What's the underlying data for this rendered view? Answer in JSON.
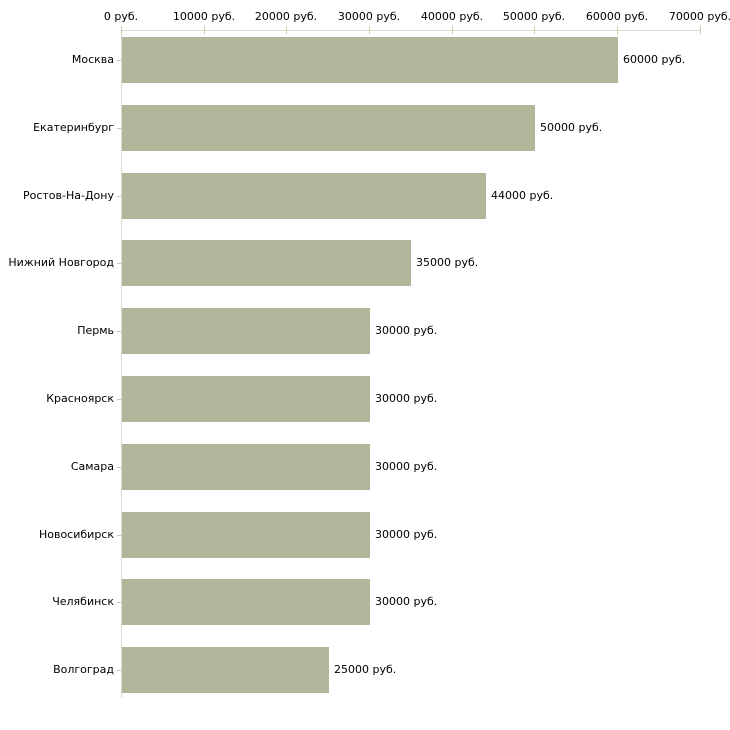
{
  "chart_data": {
    "type": "bar",
    "orientation": "horizontal",
    "title": "",
    "xlabel": "",
    "ylabel": "",
    "xlim": [
      0,
      70000
    ],
    "grid": false,
    "legend": null,
    "x_tick_values": [
      0,
      10000,
      20000,
      30000,
      40000,
      50000,
      60000,
      70000
    ],
    "x_tick_labels": [
      "0 руб.",
      "10000 руб.",
      "20000 руб.",
      "30000 руб.",
      "40000 руб.",
      "50000 руб.",
      "60000 руб.",
      "70000 руб."
    ],
    "categories": [
      "Москва",
      "Екатеринбург",
      "Ростов-На-Дону",
      "Нижний Новгород",
      "Пермь",
      "Красноярск",
      "Самара",
      "Новосибирск",
      "Челябинск",
      "Волгоград"
    ],
    "values": [
      60000,
      50000,
      44000,
      35000,
      30000,
      30000,
      30000,
      30000,
      30000,
      25000
    ],
    "bar_labels": [
      "60000 руб.",
      "50000 руб.",
      "44000 руб.",
      "35000 руб.",
      "30000 руб.",
      "30000 руб.",
      "30000 руб.",
      "30000 руб.",
      "30000 руб.",
      "25000 руб."
    ],
    "colors": {
      "bar": "#b1b79a",
      "axis_line": "#d9dbce",
      "tick": "#c6cbae",
      "text": "#000000",
      "background": "#ffffff"
    }
  }
}
